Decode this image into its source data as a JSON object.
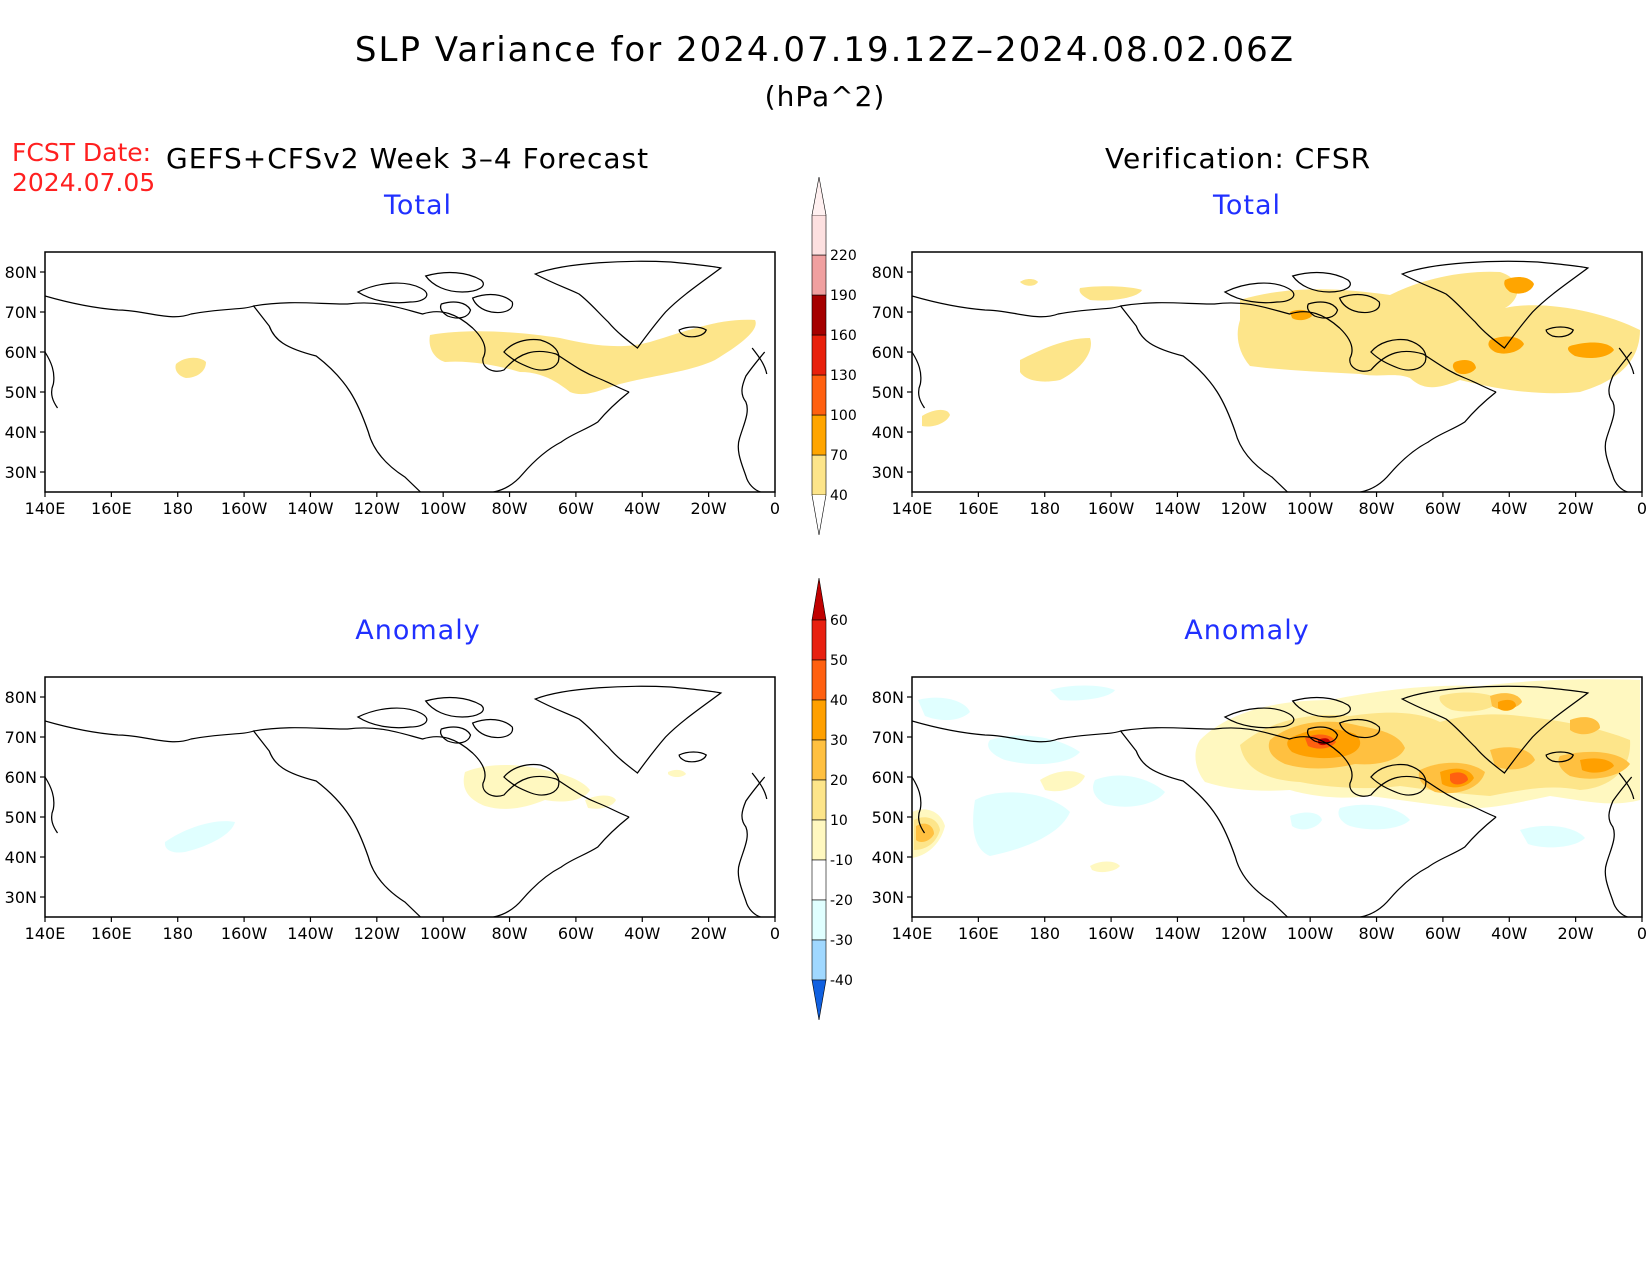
{
  "title": "SLP Variance for 2024.07.19.12Z–2024.08.02.06Z",
  "units": "(hPa^2)",
  "fcst_label": "FCST Date:",
  "fcst_date": "2024.07.05",
  "left_header": "GEFS+CFSv2 Week 3–4 Forecast",
  "right_header": "Verification: CFSR",
  "panels": [
    {
      "id": "fcst-total",
      "title": "Total",
      "colorbar": "total"
    },
    {
      "id": "verif-total",
      "title": "Total",
      "colorbar": "total"
    },
    {
      "id": "fcst-anomaly",
      "title": "Anomaly",
      "colorbar": "anomaly"
    },
    {
      "id": "verif-anomaly",
      "title": "Anomaly",
      "colorbar": "anomaly"
    }
  ],
  "lat_ticks": [
    "80N",
    "70N",
    "60N",
    "50N",
    "40N",
    "30N"
  ],
  "lon_ticks": [
    "140E",
    "160E",
    "180",
    "160W",
    "140W",
    "120W",
    "100W",
    "80W",
    "60W",
    "40W",
    "20W",
    "0"
  ],
  "colorbars": {
    "total": {
      "labels": [
        "40",
        "70",
        "100",
        "130",
        "160",
        "190",
        "220"
      ],
      "colors": [
        "#fde58a",
        "#ffa500",
        "#ff6010",
        "#e8200c",
        "#a50000",
        "#f0a0a0",
        "#fde0e0"
      ]
    },
    "anomaly": {
      "labels": [
        "60",
        "50",
        "40",
        "30",
        "20",
        "10",
        "-10",
        "-20",
        "-30",
        "-40"
      ],
      "colors_top_to_bottom": [
        "#c00000",
        "#e82010",
        "#ff6010",
        "#ffa000",
        "#ffc040",
        "#fde58a",
        "#fff8c0",
        "#ffffff",
        "#e0ffff",
        "#a0d8ff",
        "#50a0f0",
        "#1060e0"
      ]
    }
  },
  "shading_colors": {
    "total_40": "#fde58a",
    "total_70": "#ffa500",
    "total_100": "#ff6010",
    "anom_10": "#fff8c0",
    "anom_20": "#fde58a",
    "anom_30": "#ffc040",
    "anom_40": "#ffa000",
    "anom_50": "#ff6010",
    "anom_60": "#c00000",
    "anom_neg10": "#e0ffff"
  }
}
